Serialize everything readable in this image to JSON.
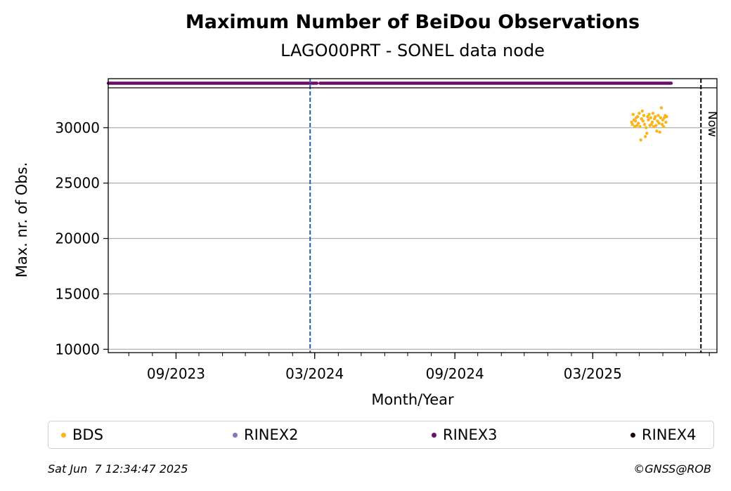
{
  "chart_data": {
    "type": "scatter",
    "title": "Maximum Number of BeiDou Observations",
    "subtitle": "LAGO00PRT - SONEL data node",
    "xlabel": "Month/Year",
    "ylabel": "Max. nr. of Obs.",
    "xlim": [
      "2023-06-04",
      "2025-08-11"
    ],
    "ylim": [
      9700,
      33600
    ],
    "x_ticks": [
      "2023-09-01",
      "2024-03-01",
      "2024-09-01",
      "2025-03-01"
    ],
    "x_tick_labels": [
      "09/2023",
      "03/2024",
      "09/2024",
      "03/2025"
    ],
    "y_ticks": [
      10000,
      15000,
      20000,
      25000,
      30000
    ],
    "y_tick_labels": [
      "10000",
      "15000",
      "20000",
      "25000",
      "30000"
    ],
    "grid": "horizontal",
    "colors": {
      "BDS": "#fbb41a",
      "RINEX2": "#7b7bbb",
      "RINEX3": "#6a0f6b",
      "RINEX4": "#1a0818",
      "vline_blue": "#1f5fa6",
      "vline_now": "#000000",
      "grid": "#b0b0b0"
    },
    "legend": {
      "placement": "below",
      "entries": [
        "BDS",
        "RINEX2",
        "RINEX3",
        "RINEX4"
      ]
    },
    "vlines": [
      {
        "x": "2024-02-24",
        "style": "dashed",
        "color_key": "vline_blue",
        "label": ""
      },
      {
        "x": "2025-07-21",
        "style": "dashed",
        "color_key": "vline_now",
        "label": "Now"
      }
    ],
    "file_strip": [
      {
        "series": "RINEX3",
        "from": "2023-06-04",
        "to": "2024-03-04"
      },
      {
        "series": "RINEX3",
        "from": "2024-03-08",
        "to": "2025-06-12"
      }
    ],
    "series": [
      {
        "name": "BDS",
        "points": [
          [
            "2025-04-21",
            30500
          ],
          [
            "2025-04-22",
            30300
          ],
          [
            "2025-04-23",
            31200
          ],
          [
            "2025-04-24",
            30700
          ],
          [
            "2025-04-25",
            30100
          ],
          [
            "2025-04-26",
            30600
          ],
          [
            "2025-04-27",
            30900
          ],
          [
            "2025-04-28",
            30200
          ],
          [
            "2025-04-29",
            31000
          ],
          [
            "2025-04-30",
            30400
          ],
          [
            "2025-05-01",
            31300
          ],
          [
            "2025-05-02",
            30100
          ],
          [
            "2025-05-03",
            28900
          ],
          [
            "2025-05-04",
            30800
          ],
          [
            "2025-05-05",
            31500
          ],
          [
            "2025-05-06",
            30600
          ],
          [
            "2025-05-07",
            31100
          ],
          [
            "2025-05-08",
            30300
          ],
          [
            "2025-05-09",
            29200
          ],
          [
            "2025-05-10",
            30000
          ],
          [
            "2025-05-11",
            29500
          ],
          [
            "2025-05-12",
            31000
          ],
          [
            "2025-05-13",
            30700
          ],
          [
            "2025-05-14",
            31200
          ],
          [
            "2025-05-15",
            30200
          ],
          [
            "2025-05-16",
            30900
          ],
          [
            "2025-05-17",
            30300
          ],
          [
            "2025-05-18",
            30500
          ],
          [
            "2025-05-19",
            31300
          ],
          [
            "2025-05-20",
            30100
          ],
          [
            "2025-05-21",
            30800
          ],
          [
            "2025-05-22",
            31000
          ],
          [
            "2025-05-23",
            30200
          ],
          [
            "2025-05-24",
            29700
          ],
          [
            "2025-05-25",
            30600
          ],
          [
            "2025-05-26",
            31100
          ],
          [
            "2025-05-27",
            30400
          ],
          [
            "2025-05-28",
            29600
          ],
          [
            "2025-05-29",
            30900
          ],
          [
            "2025-05-30",
            31800
          ],
          [
            "2025-05-31",
            30300
          ],
          [
            "2025-06-01",
            30700
          ],
          [
            "2025-06-02",
            30100
          ],
          [
            "2025-06-03",
            30900
          ],
          [
            "2025-06-04",
            31100
          ],
          [
            "2025-06-05",
            30500
          ],
          [
            "2025-06-06",
            31000
          ]
        ]
      }
    ]
  },
  "footer": {
    "date": "Sat Jun  7 12:34:47 2025",
    "credit": "©GNSS@ROB"
  }
}
